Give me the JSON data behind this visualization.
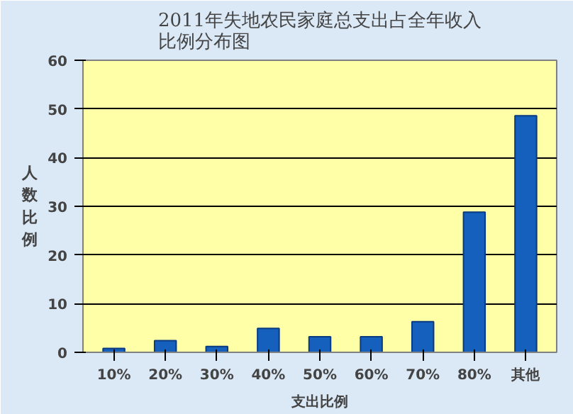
{
  "chart_data": {
    "type": "bar",
    "title": "2011年失地农民家庭总支出占全年收入比例分布图",
    "xlabel": "支出比例",
    "ylabel": "人数比例",
    "categories": [
      "10%",
      "20%",
      "30%",
      "40%",
      "50%",
      "60%",
      "70%",
      "80%",
      "其他"
    ],
    "values": [
      0.8,
      2.4,
      1.2,
      4.9,
      3.2,
      3.2,
      6.3,
      28.8,
      48.6
    ],
    "color": "#1560bd",
    "ylim": [
      0,
      60
    ],
    "yticks": [
      0,
      10,
      20,
      30,
      40,
      50,
      60
    ],
    "grid": "y"
  }
}
